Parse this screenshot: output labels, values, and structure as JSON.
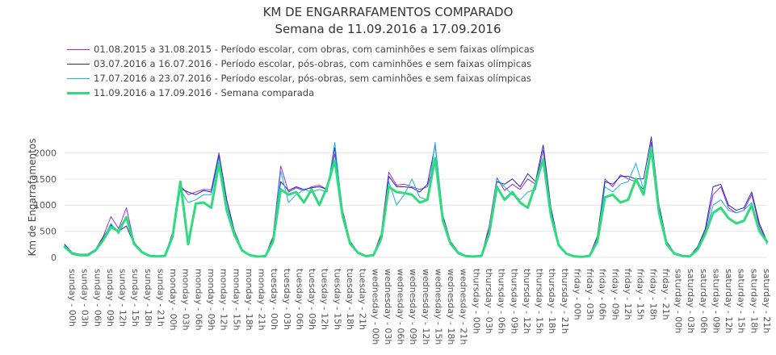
{
  "chart_data": {
    "type": "line",
    "title": "KM DE ENGARRAFAMENTOS COMPARADO",
    "subtitle": "Semana de 11.09.2016 a 17.09.2016",
    "ylabel": "Km de Engarrafamentos",
    "xlabel": "",
    "ylim": [
      0,
      2300
    ],
    "yticks": [
      0,
      500,
      1000,
      1500,
      2000
    ],
    "grid": true,
    "legend_position": "top-left",
    "x_tick_labels": [
      "sunday - 00h",
      "sunday - 03h",
      "sunday - 06h",
      "sunday - 09h",
      "sunday - 12h",
      "sunday - 15h",
      "sunday - 18h",
      "sunday - 21h",
      "monday - 00h",
      "monday - 03h",
      "monday - 06h",
      "monday - 09h",
      "monday - 12h",
      "monday - 15h",
      "monday - 18h",
      "monday - 21h",
      "tuesday - 00h",
      "tuesday - 03h",
      "tuesday - 06h",
      "tuesday - 09h",
      "tuesday - 12h",
      "tuesday - 15h",
      "tuesday - 18h",
      "tuesday - 21h",
      "wednesday - 00h",
      "wednesday - 03h",
      "wednesday - 06h",
      "wednesday - 09h",
      "wednesday - 12h",
      "wednesday - 15h",
      "wednesday - 18h",
      "wednesday - 21h",
      "thursday - 00h",
      "thursday - 03h",
      "thursday - 06h",
      "thursday - 09h",
      "thursday - 12h",
      "thursday - 15h",
      "thursday - 18h",
      "thursday - 21h",
      "friday - 00h",
      "friday - 03h",
      "friday - 06h",
      "friday - 09h",
      "friday - 12h",
      "friday - 15h",
      "friday - 18h",
      "friday - 21h",
      "saturday - 00h",
      "saturday - 03h",
      "saturday - 06h",
      "saturday - 09h",
      "saturday - 12h",
      "saturday - 15h",
      "saturday - 18h",
      "saturday - 21h"
    ],
    "series": [
      {
        "name": "01.08.2015 a 31.08.2015 - Período escolar, com obras, com caminhões e sem faixas olímpicas",
        "color": "#9b30d9",
        "width": 1,
        "values": [
          250,
          80,
          50,
          60,
          150,
          400,
          780,
          550,
          950,
          300,
          100,
          30,
          20,
          40,
          480,
          1370,
          1200,
          1250,
          1300,
          1290,
          2000,
          1100,
          500,
          150,
          40,
          20,
          30,
          400,
          1750,
          1250,
          1330,
          1280,
          1350,
          1380,
          1300,
          1980,
          900,
          300,
          100,
          30,
          50,
          450,
          1630,
          1380,
          1400,
          1350,
          1300,
          1350,
          1880,
          750,
          300,
          100,
          30,
          20,
          40,
          600,
          1520,
          1280,
          1400,
          1300,
          1500,
          1400,
          2050,
          900,
          250,
          80,
          20,
          15,
          40,
          350,
          1500,
          1350,
          1580,
          1500,
          1450,
          1300,
          2200,
          900,
          300,
          80,
          40,
          30,
          200,
          500,
          1200,
          1350,
          950,
          850,
          900,
          1200,
          600,
          280
        ]
      },
      {
        "name": "03.07.2016 a 16.07.2016 - Período escolar, pós-obras, com caminhões e sem faixas olímpicas",
        "color": "#2427b8",
        "width": 1,
        "values": [
          250,
          90,
          60,
          60,
          150,
          380,
          620,
          500,
          600,
          250,
          100,
          30,
          20,
          40,
          450,
          1320,
          1250,
          1200,
          1280,
          1250,
          1950,
          1100,
          500,
          150,
          40,
          20,
          30,
          380,
          1450,
          1280,
          1350,
          1300,
          1330,
          1350,
          1300,
          2100,
          900,
          300,
          100,
          30,
          50,
          420,
          1550,
          1350,
          1350,
          1330,
          1250,
          1400,
          2150,
          800,
          300,
          100,
          30,
          20,
          40,
          550,
          1450,
          1400,
          1500,
          1350,
          1600,
          1450,
          2150,
          950,
          260,
          80,
          20,
          15,
          40,
          400,
          1450,
          1400,
          1550,
          1550,
          1500,
          1500,
          2300,
          1000,
          300,
          80,
          40,
          30,
          200,
          550,
          1350,
          1400,
          1000,
          900,
          950,
          1250,
          650,
          300
        ]
      },
      {
        "name": "17.07.2016 a 23.07.2016 - Período escolar, pós-obras, sem caminhões e sem faixas olímpicas",
        "color": "#1aaee8",
        "width": 1,
        "values": [
          220,
          70,
          50,
          50,
          140,
          350,
          650,
          450,
          760,
          250,
          90,
          30,
          20,
          40,
          400,
          1290,
          1050,
          1100,
          1200,
          1200,
          1900,
          1000,
          480,
          140,
          40,
          20,
          30,
          350,
          1650,
          1050,
          1200,
          1300,
          1250,
          1300,
          1250,
          2200,
          850,
          280,
          90,
          30,
          40,
          400,
          1450,
          1000,
          1200,
          1500,
          1150,
          1100,
          2200,
          750,
          280,
          90,
          30,
          20,
          40,
          500,
          1500,
          1350,
          1200,
          1100,
          1250,
          1300,
          1900,
          850,
          240,
          70,
          20,
          15,
          40,
          350,
          1350,
          1250,
          1400,
          1450,
          1800,
          1300,
          2100,
          850,
          280,
          80,
          40,
          30,
          180,
          450,
          1000,
          1100,
          900,
          850,
          900,
          1050,
          550,
          250
        ]
      },
      {
        "name": "11.09.2016 a 17.09.2016 - Semana comparada",
        "color": "#2edc7e",
        "width": 3,
        "values": [
          200,
          70,
          40,
          40,
          130,
          330,
          580,
          500,
          770,
          260,
          100,
          30,
          20,
          30,
          400,
          1450,
          250,
          1030,
          1050,
          950,
          1800,
          900,
          430,
          130,
          40,
          15,
          25,
          300,
          1300,
          1200,
          1250,
          1050,
          1300,
          1000,
          1350,
          1850,
          800,
          260,
          90,
          25,
          40,
          350,
          1350,
          1250,
          1230,
          1200,
          1050,
          1100,
          1900,
          700,
          260,
          80,
          25,
          15,
          30,
          450,
          1350,
          1100,
          1250,
          1050,
          950,
          1400,
          1870,
          800,
          230,
          70,
          20,
          10,
          30,
          300,
          1150,
          1200,
          1050,
          1100,
          1500,
          1200,
          2100,
          850,
          250,
          70,
          30,
          20,
          150,
          450,
          850,
          950,
          750,
          650,
          700,
          1000,
          500,
          300
        ]
      }
    ]
  }
}
